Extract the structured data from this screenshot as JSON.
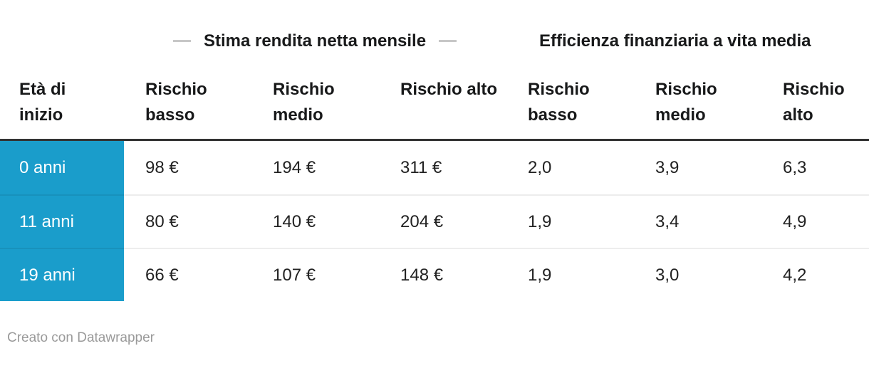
{
  "accent_color": "#1a9dcb",
  "chart_data": {
    "type": "table",
    "column_groups": [
      {
        "label": "Stima rendita netta mensile",
        "columns_spanned": [
          1,
          2,
          3
        ],
        "has_dashes": true
      },
      {
        "label": "Efficienza finanziaria a vita media",
        "columns_spanned": [
          4,
          5,
          6
        ],
        "has_dashes": false
      }
    ],
    "columns": [
      "Età di inizio",
      "Rischio basso",
      "Rischio medio",
      "Rischio alto",
      "Rischio basso",
      "Rischio medio",
      "Rischio alto"
    ],
    "rows": [
      {
        "label": "0 anni",
        "cells": [
          "98 €",
          "194 €",
          "311 €",
          "2,0",
          "3,9",
          "6,3"
        ]
      },
      {
        "label": "11 anni",
        "cells": [
          "80 €",
          "140 €",
          "204 €",
          "1,9",
          "3,4",
          "4,9"
        ]
      },
      {
        "label": "19 anni",
        "cells": [
          "66 €",
          "107 €",
          "148 €",
          "1,9",
          "3,0",
          "4,2"
        ]
      }
    ]
  },
  "footer": {
    "credit": "Creato con Datawrapper"
  }
}
